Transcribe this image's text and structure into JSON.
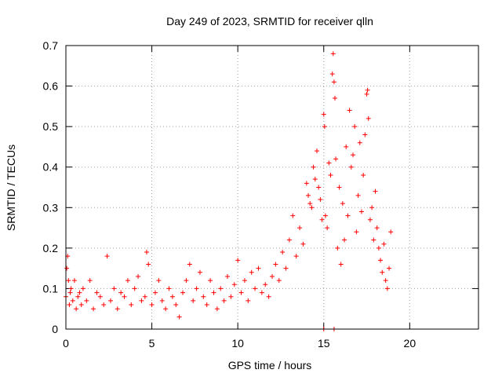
{
  "chart_data": {
    "type": "scatter",
    "title": "Day 249 of 2023, SRMTID for receiver qlln",
    "xlabel": "GPS time / hours",
    "ylabel": "SRMTID / TECUs",
    "xlim": [
      0,
      24
    ],
    "ylim": [
      0,
      0.7
    ],
    "xticks": [
      0,
      5,
      10,
      15,
      20
    ],
    "yticks": [
      0,
      0.1,
      0.2,
      0.3,
      0.4,
      0.5,
      0.6,
      0.7
    ],
    "grid": true,
    "marker": "+",
    "color": "#ff0000",
    "series": [
      {
        "name": "SRMTID",
        "x": [
          0.0,
          0.05,
          0.1,
          0.15,
          0.2,
          0.25,
          0.3,
          0.4,
          0.5,
          0.6,
          0.7,
          0.8,
          0.9,
          1.0,
          1.2,
          1.4,
          1.6,
          1.8,
          2.0,
          2.2,
          2.4,
          2.6,
          2.8,
          3.0,
          3.2,
          3.4,
          3.6,
          3.8,
          4.0,
          4.2,
          4.4,
          4.6,
          4.7,
          4.8,
          5.0,
          5.2,
          5.4,
          5.6,
          5.8,
          6.0,
          6.2,
          6.4,
          6.6,
          6.8,
          7.0,
          7.2,
          7.4,
          7.6,
          7.8,
          8.0,
          8.2,
          8.4,
          8.6,
          8.8,
          9.0,
          9.2,
          9.4,
          9.6,
          9.8,
          10.0,
          10.2,
          10.4,
          10.6,
          10.8,
          11.0,
          11.2,
          11.4,
          11.6,
          11.8,
          12.0,
          12.2,
          12.4,
          12.6,
          12.8,
          13.0,
          13.2,
          13.4,
          13.6,
          13.8,
          14.0,
          14.1,
          14.2,
          14.3,
          14.4,
          14.5,
          14.6,
          14.7,
          14.8,
          14.9,
          15.0,
          15.05,
          15.1,
          15.2,
          15.3,
          15.4,
          15.5,
          15.55,
          15.6,
          15.65,
          15.7,
          15.8,
          15.9,
          16.0,
          16.1,
          16.2,
          16.3,
          16.4,
          16.5,
          16.6,
          16.7,
          16.8,
          16.9,
          17.0,
          17.1,
          17.2,
          17.3,
          17.4,
          17.5,
          17.55,
          17.6,
          17.7,
          17.8,
          17.9,
          18.0,
          18.1,
          18.2,
          18.3,
          18.4,
          18.5,
          18.6,
          18.7,
          18.8,
          18.9,
          15.0,
          15.6
        ],
        "y": [
          0.08,
          0.15,
          0.18,
          0.12,
          0.06,
          0.09,
          0.1,
          0.07,
          0.12,
          0.05,
          0.08,
          0.09,
          0.06,
          0.1,
          0.07,
          0.12,
          0.05,
          0.09,
          0.08,
          0.06,
          0.18,
          0.07,
          0.1,
          0.05,
          0.09,
          0.08,
          0.12,
          0.06,
          0.1,
          0.13,
          0.07,
          0.08,
          0.19,
          0.16,
          0.06,
          0.09,
          0.12,
          0.07,
          0.05,
          0.1,
          0.08,
          0.06,
          0.03,
          0.09,
          0.12,
          0.16,
          0.07,
          0.1,
          0.14,
          0.08,
          0.06,
          0.12,
          0.09,
          0.05,
          0.1,
          0.07,
          0.13,
          0.08,
          0.11,
          0.17,
          0.09,
          0.12,
          0.07,
          0.14,
          0.1,
          0.15,
          0.09,
          0.11,
          0.08,
          0.13,
          0.16,
          0.12,
          0.19,
          0.15,
          0.22,
          0.28,
          0.18,
          0.25,
          0.21,
          0.36,
          0.33,
          0.31,
          0.3,
          0.4,
          0.37,
          0.44,
          0.35,
          0.32,
          0.27,
          0.53,
          0.5,
          0.28,
          0.25,
          0.41,
          0.38,
          0.63,
          0.68,
          0.61,
          0.57,
          0.42,
          0.2,
          0.35,
          0.16,
          0.31,
          0.22,
          0.45,
          0.28,
          0.54,
          0.4,
          0.43,
          0.5,
          0.24,
          0.33,
          0.46,
          0.29,
          0.38,
          0.48,
          0.58,
          0.59,
          0.52,
          0.27,
          0.3,
          0.22,
          0.34,
          0.25,
          0.2,
          0.17,
          0.14,
          0.21,
          0.12,
          0.1,
          0.15,
          0.24,
          0.0,
          0.0
        ]
      }
    ]
  }
}
